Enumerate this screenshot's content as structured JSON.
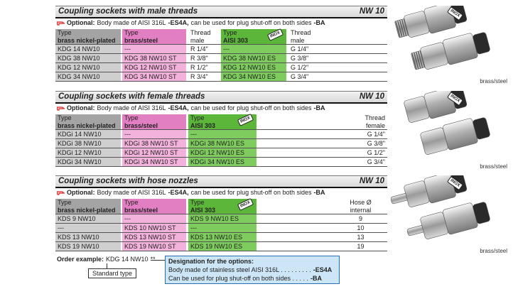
{
  "sections": [
    {
      "title": "Coupling sockets with male threads",
      "size": "NW 10",
      "optional": {
        "label": "Optional:",
        "text1": "Body made of AISI 316L",
        "code1": "-ES4A,",
        "text2": "can be used for plug shut-off on both sides",
        "code2": "-BA"
      },
      "badge": "INOX",
      "columns": [
        [
          "Type",
          "brass nickel-plated"
        ],
        [
          "Type",
          "brass/steel"
        ],
        [
          "Thread",
          "male"
        ],
        [
          "Type",
          "AISI 303"
        ],
        [
          "Thread",
          "male"
        ]
      ],
      "rows": [
        [
          "KDG 14 NW10",
          "---",
          "R 1/4\"",
          "---",
          "G 1/4\""
        ],
        [
          "KDG 38 NW10",
          "KDG 38 NW10 ST",
          "R 3/8\"",
          "KDG 38 NW10 ES",
          "G 3/8\""
        ],
        [
          "KDG 12 NW10",
          "KDG 12 NW10 ST",
          "R 1/2\"",
          "KDG 12 NW10 ES",
          "G 1/2\""
        ],
        [
          "KDG 34 NW10",
          "KDG 34 NW10 ST",
          "R 3/4\"",
          "KDG 34 NW10 ES",
          "G 3/4\""
        ]
      ],
      "image_caption": "brass/steel"
    },
    {
      "title": "Coupling sockets with female threads",
      "size": "NW 10",
      "optional": {
        "label": "Optional:",
        "text1": "Body made of AISI 316L",
        "code1": "-ES4A,",
        "text2": "can be used for plug shut-off on both sides",
        "code2": "-BA"
      },
      "badge": "INOX",
      "columns": [
        [
          "Type",
          "brass nickel-plated"
        ],
        [
          "Type",
          "brass/steel"
        ],
        [
          "Type",
          "AISI 303"
        ],
        [
          "Thread",
          "female"
        ]
      ],
      "rows": [
        [
          "KDGi 14 NW10",
          "---",
          "---",
          "G 1/4\""
        ],
        [
          "KDGi 38 NW10",
          "KDGi 38 NW10 ST",
          "KDGi 38 NW10 ES",
          "G 3/8\""
        ],
        [
          "KDGi 12 NW10",
          "KDGi 12 NW10 ST",
          "KDGi 12 NW10 ES",
          "G 1/2\""
        ],
        [
          "KDGi 34 NW10",
          "KDGi 34 NW10 ST",
          "KDGi 34 NW10 ES",
          "G 3/4\""
        ]
      ],
      "image_caption": "brass/steel"
    },
    {
      "title": "Coupling sockets with hose nozzles",
      "size": "NW 10",
      "optional": {
        "label": "Optional:",
        "text1": "Body made of AISI 316L",
        "code1": "-ES4A,",
        "text2": "can be used for plug shut-off on both sides",
        "code2": "-BA"
      },
      "badge": "INOX",
      "columns": [
        [
          "Type",
          "brass nickel-plated"
        ],
        [
          "Type",
          "brass/steel"
        ],
        [
          "Type",
          "AISI 303"
        ],
        [
          "Hose Ø",
          "internal"
        ]
      ],
      "rows": [
        [
          "KDS 9 NW10",
          "---",
          "KDS 9 NW10 ES",
          "9"
        ],
        [
          "---",
          "KDS 10 NW10 ST",
          "---",
          "10"
        ],
        [
          "KDS 13 NW10",
          "KDS 13 NW10 ST",
          "KDS 13 NW10 ES",
          "13"
        ],
        [
          "KDS 19 NW10",
          "KDS 19 NW10 ST",
          "KDS 19 NW10 ES",
          "19"
        ]
      ],
      "image_caption": "brass/steel"
    }
  ],
  "order_example": {
    "label": "Order example:",
    "code": "KDG 14 NW10",
    "suffix": "**",
    "standard": "Standard type"
  },
  "designation": {
    "title": "Designation for the options:",
    "line1": "Body made of stainless steel AISI 316L . . . . . . . . .",
    "code1": "-ES4A",
    "line2": "Can be used for plug shut-off on both sides . . . . .",
    "code2": "-BA"
  }
}
